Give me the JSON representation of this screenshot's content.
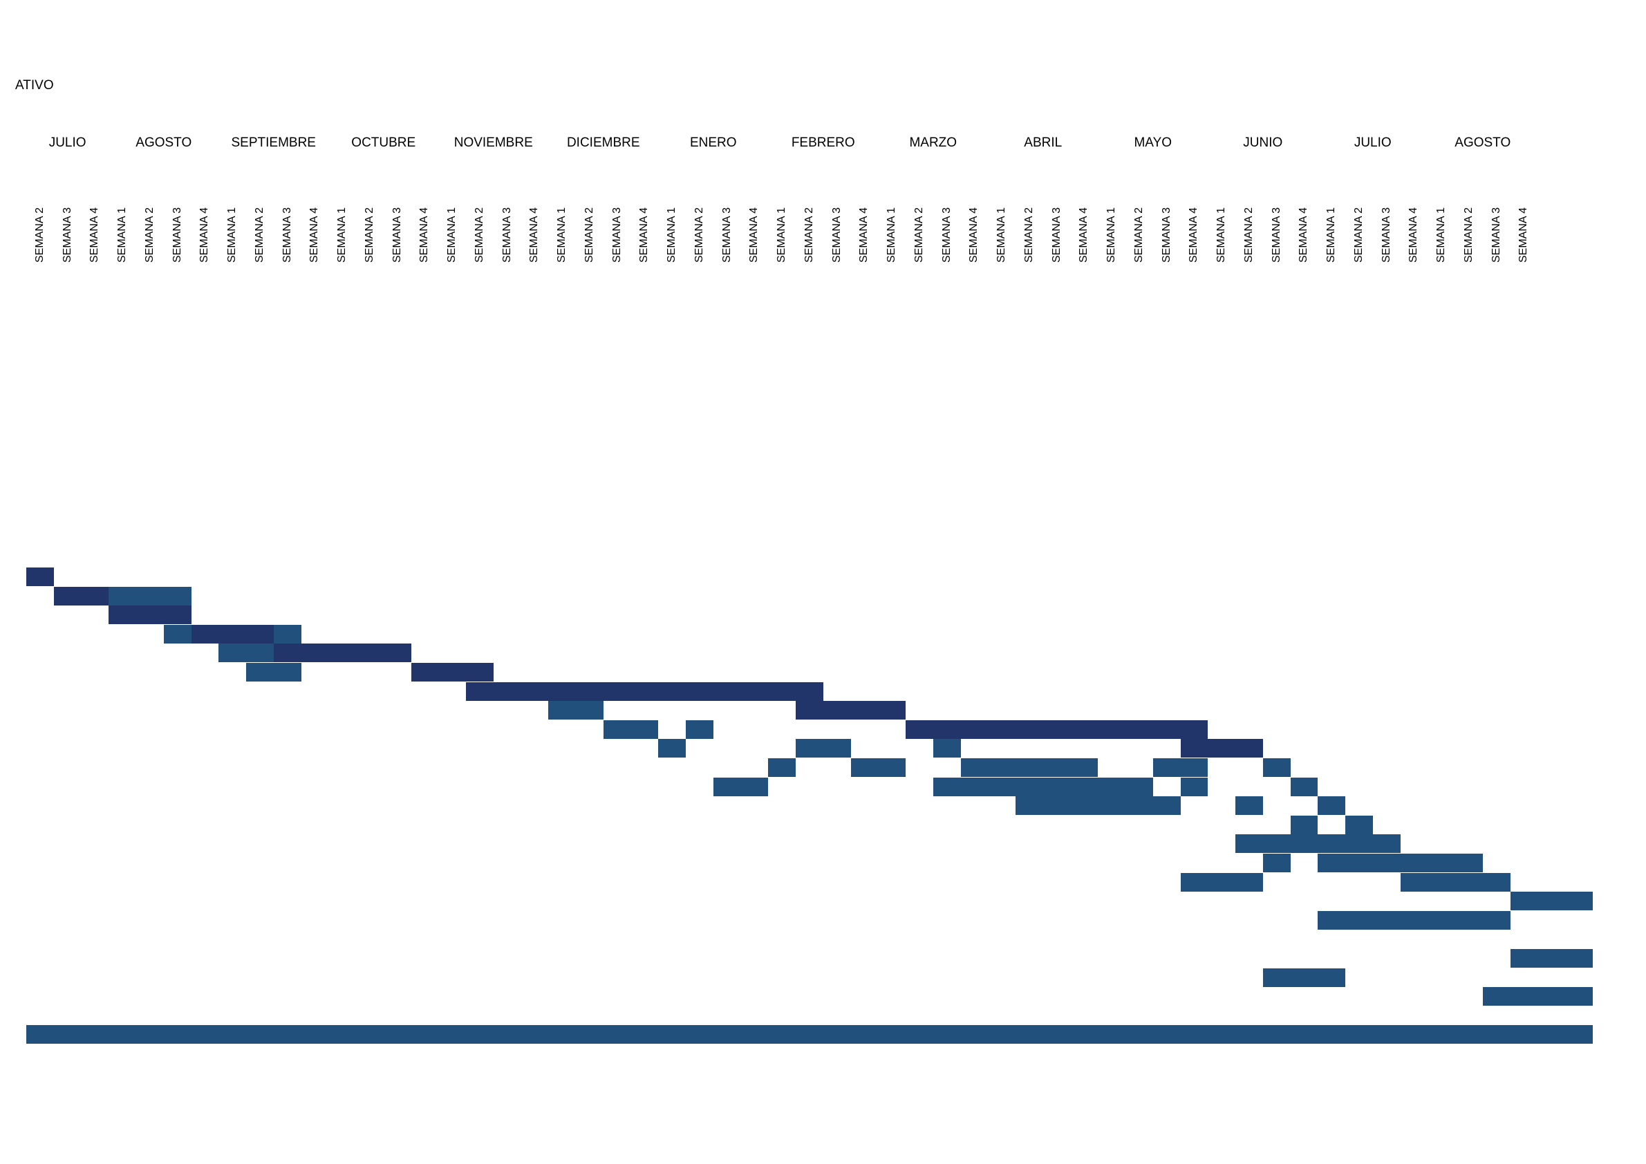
{
  "title": "ATIVO",
  "colors": {
    "dark": "#22356a",
    "mid": "#21507c"
  },
  "chart_data": {
    "type": "gantt",
    "title": "ATIVO",
    "months": [
      {
        "label": "JULIO",
        "weeks": [
          "SEMANA 2",
          "SEMANA 3",
          "SEMANA 4"
        ]
      },
      {
        "label": "AGOSTO",
        "weeks": [
          "SEMANA 1",
          "SEMANA 2",
          "SEMANA 3",
          "SEMANA 4"
        ]
      },
      {
        "label": "SEPTIEMBRE",
        "weeks": [
          "SEMANA 1",
          "SEMANA 2",
          "SEMANA 3",
          "SEMANA 4"
        ]
      },
      {
        "label": "OCTUBRE",
        "weeks": [
          "SEMANA 1",
          "SEMANA 2",
          "SEMANA 3",
          "SEMANA 4"
        ]
      },
      {
        "label": "NOVIEMBRE",
        "weeks": [
          "SEMANA 1",
          "SEMANA 2",
          "SEMANA 3",
          "SEMANA 4"
        ]
      },
      {
        "label": "DICIEMBRE",
        "weeks": [
          "SEMANA 1",
          "SEMANA 2",
          "SEMANA 3",
          "SEMANA 4"
        ]
      },
      {
        "label": "ENERO",
        "weeks": [
          "SEMANA 1",
          "SEMANA 2",
          "SEMANA 3",
          "SEMANA 4"
        ]
      },
      {
        "label": "FEBRERO",
        "weeks": [
          "SEMANA 1",
          "SEMANA 2",
          "SEMANA 3",
          "SEMANA 4"
        ]
      },
      {
        "label": "MARZO",
        "weeks": [
          "SEMANA 1",
          "SEMANA 2",
          "SEMANA 3",
          "SEMANA 4"
        ]
      },
      {
        "label": "ABRIL",
        "weeks": [
          "SEMANA 1",
          "SEMANA 2",
          "SEMANA 3",
          "SEMANA 4"
        ]
      },
      {
        "label": "MAYO",
        "weeks": [
          "SEMANA 1",
          "SEMANA 2",
          "SEMANA 3",
          "SEMANA 4"
        ]
      },
      {
        "label": "JUNIO",
        "weeks": [
          "SEMANA 1",
          "SEMANA 2",
          "SEMANA 3",
          "SEMANA 4"
        ]
      },
      {
        "label": "JULIO",
        "weeks": [
          "SEMANA 1",
          "SEMANA 2",
          "SEMANA 3",
          "SEMANA 4"
        ]
      },
      {
        "label": "AGOSTO",
        "weeks": [
          "SEMANA 1",
          "SEMANA 2",
          "SEMANA 3",
          "SEMANA 4"
        ]
      }
    ],
    "rows": [
      [
        {
          "start": 0,
          "end": 1,
          "tone": "dark"
        }
      ],
      [
        {
          "start": 1,
          "end": 3,
          "tone": "dark"
        },
        {
          "start": 3,
          "end": 6,
          "tone": "mid"
        }
      ],
      [
        {
          "start": 3,
          "end": 6,
          "tone": "dark"
        }
      ],
      [
        {
          "start": 5,
          "end": 6,
          "tone": "mid"
        },
        {
          "start": 6,
          "end": 9,
          "tone": "dark"
        },
        {
          "start": 9,
          "end": 10,
          "tone": "mid"
        }
      ],
      [
        {
          "start": 7,
          "end": 8,
          "tone": "mid"
        },
        {
          "start": 8,
          "end": 9,
          "tone": "mid"
        },
        {
          "start": 9,
          "end": 14,
          "tone": "dark"
        }
      ],
      [
        {
          "start": 8,
          "end": 10,
          "tone": "mid"
        },
        {
          "start": 14,
          "end": 17,
          "tone": "dark"
        }
      ],
      [
        {
          "start": 16,
          "end": 29,
          "tone": "dark"
        }
      ],
      [
        {
          "start": 19,
          "end": 21,
          "tone": "mid"
        },
        {
          "start": 28,
          "end": 32,
          "tone": "dark"
        }
      ],
      [
        {
          "start": 21,
          "end": 23,
          "tone": "mid"
        },
        {
          "start": 24,
          "end": 25,
          "tone": "mid"
        },
        {
          "start": 32,
          "end": 43,
          "tone": "dark"
        }
      ],
      [
        {
          "start": 23,
          "end": 24,
          "tone": "mid"
        },
        {
          "start": 28,
          "end": 30,
          "tone": "mid"
        },
        {
          "start": 33,
          "end": 34,
          "tone": "mid"
        },
        {
          "start": 42,
          "end": 45,
          "tone": "dark"
        }
      ],
      [
        {
          "start": 27,
          "end": 28,
          "tone": "mid"
        },
        {
          "start": 30,
          "end": 32,
          "tone": "mid"
        },
        {
          "start": 34,
          "end": 39,
          "tone": "mid"
        },
        {
          "start": 41,
          "end": 43,
          "tone": "mid"
        },
        {
          "start": 45,
          "end": 46,
          "tone": "mid"
        }
      ],
      [
        {
          "start": 25,
          "end": 27,
          "tone": "mid"
        },
        {
          "start": 33,
          "end": 41,
          "tone": "mid"
        },
        {
          "start": 42,
          "end": 43,
          "tone": "mid"
        },
        {
          "start": 46,
          "end": 47,
          "tone": "mid"
        }
      ],
      [
        {
          "start": 36,
          "end": 42,
          "tone": "mid"
        },
        {
          "start": 44,
          "end": 45,
          "tone": "mid"
        },
        {
          "start": 47,
          "end": 48,
          "tone": "mid"
        }
      ],
      [
        {
          "start": 46,
          "end": 47,
          "tone": "mid"
        },
        {
          "start": 48,
          "end": 49,
          "tone": "mid"
        }
      ],
      [
        {
          "start": 44,
          "end": 50,
          "tone": "mid"
        }
      ],
      [
        {
          "start": 45,
          "end": 46,
          "tone": "mid"
        },
        {
          "start": 47,
          "end": 53,
          "tone": "mid"
        }
      ],
      [
        {
          "start": 42,
          "end": 45,
          "tone": "mid"
        },
        {
          "start": 50,
          "end": 54,
          "tone": "mid"
        }
      ],
      [
        {
          "start": 54,
          "end": 57,
          "tone": "mid"
        }
      ],
      [
        {
          "start": 47,
          "end": 54,
          "tone": "mid"
        }
      ],
      [],
      [
        {
          "start": 54,
          "end": 57,
          "tone": "mid"
        }
      ],
      [
        {
          "start": 45,
          "end": 48,
          "tone": "mid"
        }
      ],
      [
        {
          "start": 53,
          "end": 57,
          "tone": "mid"
        }
      ],
      [],
      [
        {
          "start": 0,
          "end": 57,
          "tone": "mid"
        }
      ]
    ]
  }
}
